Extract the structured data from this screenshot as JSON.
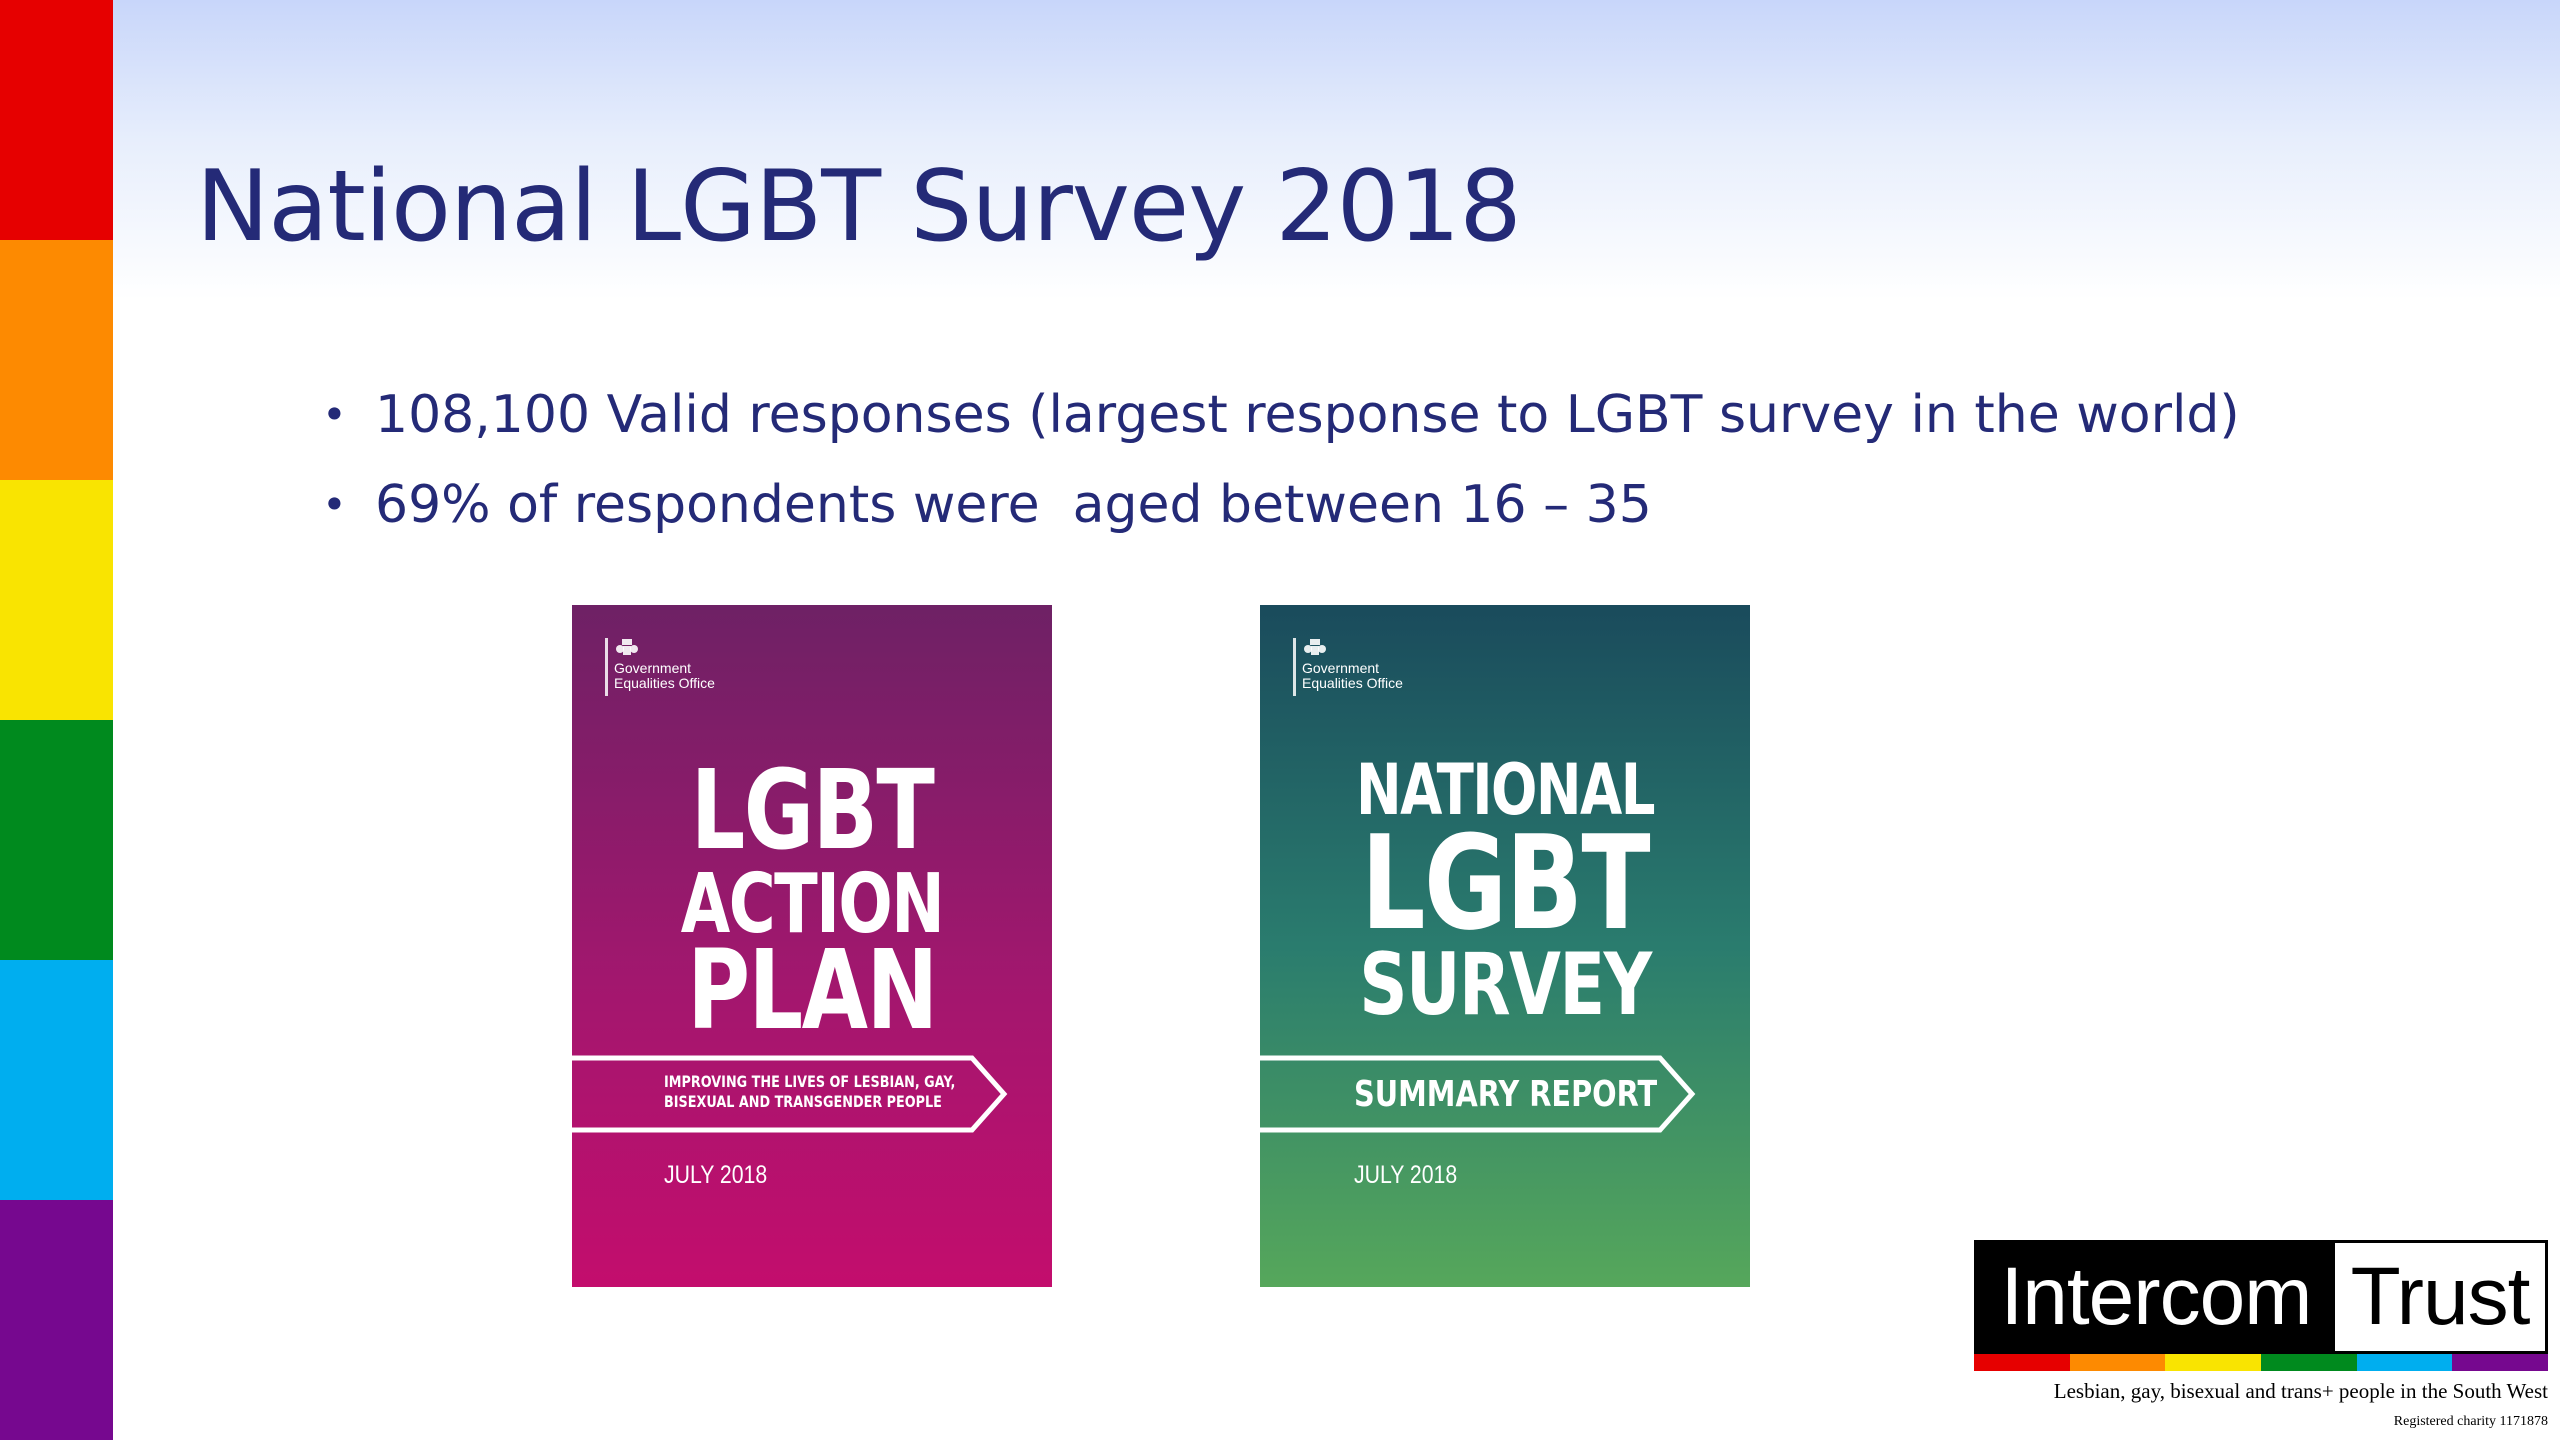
{
  "slide": {
    "title": "National LGBT Survey 2018",
    "bullets": [
      "108,100 Valid responses (largest response to LGBT survey in the world)",
      "69% of respondents were  aged between 16 – 35"
    ]
  },
  "rainbow_colors": [
    "#e60000",
    "#fd8a01",
    "#f9e401",
    "#008a1e",
    "#00aeef",
    "#76088f"
  ],
  "covers": {
    "action_plan": {
      "org_line1": "Government",
      "org_line2": "Equalities Office",
      "title_line1": "LGBT",
      "title_line2": "ACTION",
      "title_line3": "PLAN",
      "subtitle_line1": "IMPROVING THE LIVES OF LESBIAN, GAY,",
      "subtitle_line2": "BISEXUAL AND TRANSGENDER PEOPLE",
      "date": "JULY 2018"
    },
    "survey_summary": {
      "org_line1": "Government",
      "org_line2": "Equalities Office",
      "title_line1": "NATIONAL",
      "title_line2": "LGBT",
      "title_line3": "SURVEY",
      "subtitle": "SUMMARY REPORT",
      "date": "JULY 2018"
    }
  },
  "logo": {
    "word1": "Intercom",
    "word2": "Trust",
    "tagline": "Lesbian, gay, bisexual and trans+ people in the South West",
    "charity": "Registered charity 1171878"
  }
}
